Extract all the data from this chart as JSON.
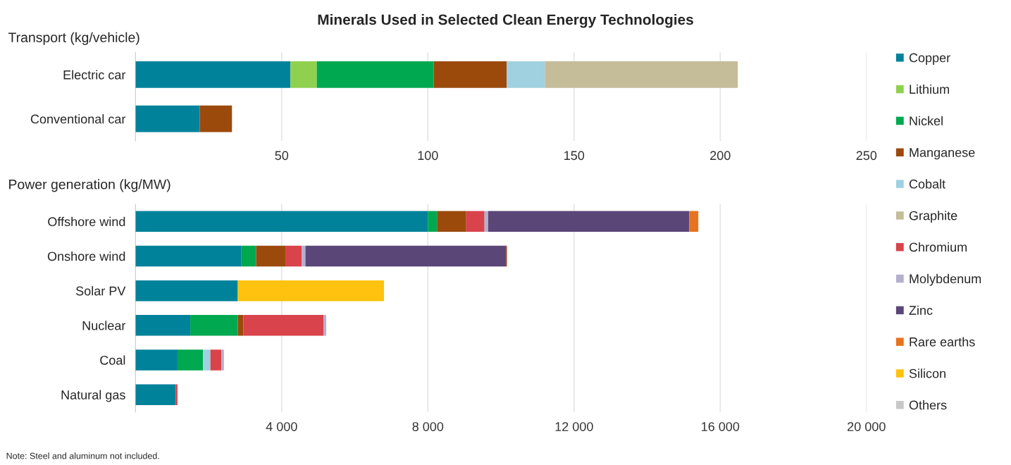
{
  "chart_data": [
    {
      "type": "bar",
      "orientation": "horizontal",
      "stacked": true,
      "title": "Minerals Used in Selected Clean Energy Technologies",
      "subtitle": "Transport (kg/vehicle)",
      "categories": [
        "Electric car",
        "Conventional car"
      ],
      "series": [
        {
          "name": "Copper",
          "color": "#00829b",
          "values": [
            53,
            22
          ]
        },
        {
          "name": "Lithium",
          "color": "#8fd14f",
          "values": [
            9,
            null
          ]
        },
        {
          "name": "Nickel",
          "color": "#00a84f",
          "values": [
            40,
            null
          ]
        },
        {
          "name": "Manganese",
          "color": "#9b4a0c",
          "values": [
            25,
            11
          ]
        },
        {
          "name": "Cobalt",
          "color": "#9fd1e0",
          "values": [
            13,
            null
          ]
        },
        {
          "name": "Graphite",
          "color": "#c5bc99",
          "values": [
            66,
            null
          ]
        }
      ],
      "xlim": [
        0,
        250
      ],
      "xticks": [
        50,
        100,
        150,
        200,
        250
      ],
      "grid": "x",
      "legend": "right"
    },
    {
      "type": "bar",
      "orientation": "horizontal",
      "stacked": true,
      "title": "Power generation (kg/MW)",
      "categories": [
        "Offshore wind",
        "Onshore wind",
        "Solar PV",
        "Nuclear",
        "Coal",
        "Natural gas"
      ],
      "series": [
        {
          "name": "Copper",
          "color": "#00829b",
          "values": [
            8000,
            2900,
            2800,
            1500,
            1150,
            1100
          ]
        },
        {
          "name": "Nickel",
          "color": "#00a84f",
          "values": [
            250,
            400,
            null,
            1300,
            700,
            null
          ]
        },
        {
          "name": "Manganese",
          "color": "#9b4a0c",
          "values": [
            800,
            800,
            null,
            150,
            null,
            null
          ]
        },
        {
          "name": "Cobalt",
          "color": "#9fd1e0",
          "values": [
            null,
            null,
            null,
            null,
            200,
            null
          ]
        },
        {
          "name": "Chromium",
          "color": "#d9434b",
          "values": [
            500,
            450,
            null,
            2200,
            300,
            50
          ]
        },
        {
          "name": "Molybdenum",
          "color": "#b3b0cf",
          "values": [
            100,
            100,
            null,
            70,
            70,
            null
          ]
        },
        {
          "name": "Zinc",
          "color": "#5b4678",
          "values": [
            5500,
            5500,
            null,
            null,
            null,
            null
          ]
        },
        {
          "name": "Rare earths",
          "color": "#e8731e",
          "values": [
            250,
            20,
            null,
            null,
            null,
            null
          ]
        },
        {
          "name": "Silicon",
          "color": "#ffc20e",
          "values": [
            null,
            null,
            4000,
            null,
            null,
            null
          ]
        },
        {
          "name": "Others",
          "color": "#c8c8c8",
          "values": [
            null,
            null,
            null,
            null,
            null,
            null
          ]
        }
      ],
      "xlim": [
        0,
        20000
      ],
      "xticks": [
        {
          "value": 4000,
          "label": "4 000"
        },
        {
          "value": 8000,
          "label": "8 000"
        },
        {
          "value": 12000,
          "label": "12 000"
        },
        {
          "value": 16000,
          "label": "16 000"
        },
        {
          "value": 20000,
          "label": "20 000"
        }
      ],
      "grid": "x",
      "legend": "right",
      "annotations": [
        "Note: Steel and aluminum not included."
      ]
    }
  ]
}
